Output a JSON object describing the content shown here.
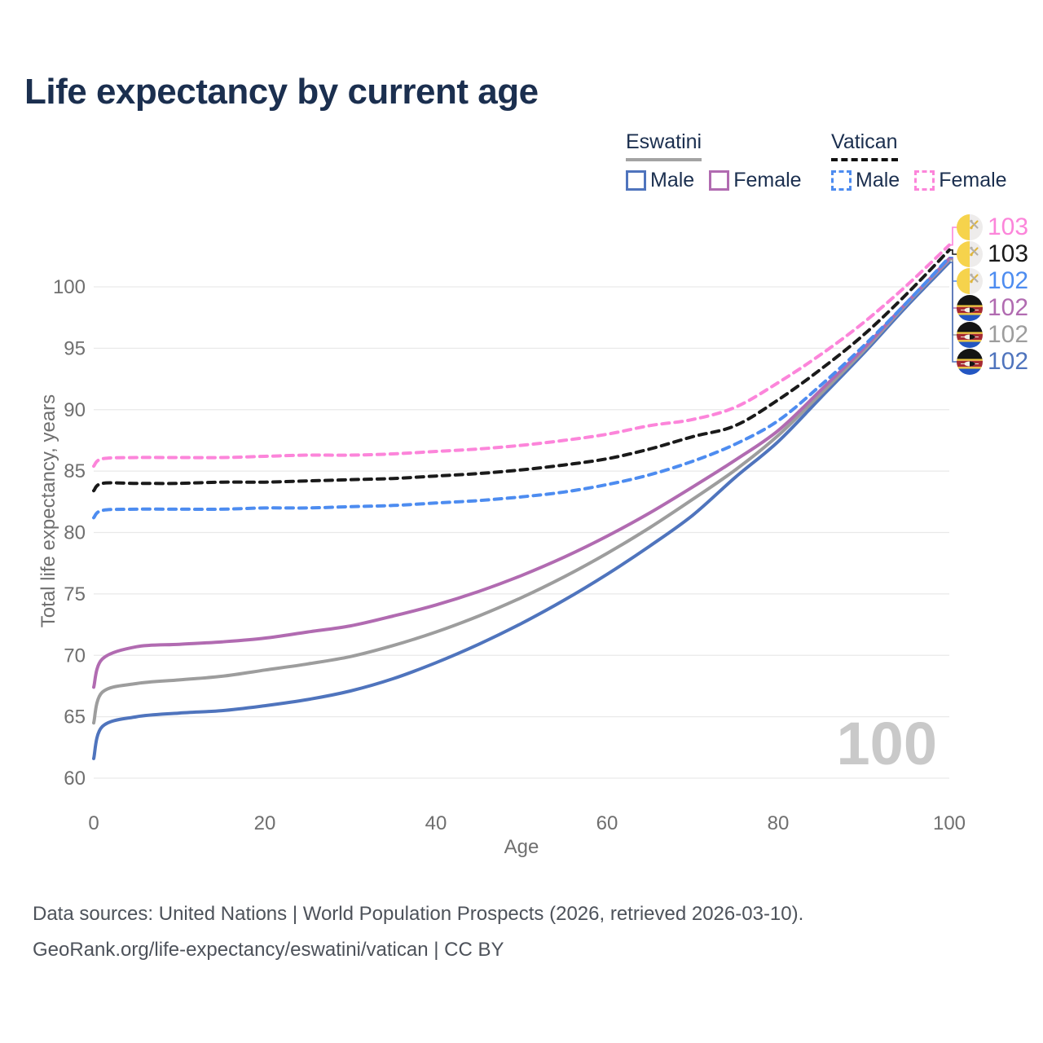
{
  "title": "Life expectancy by current age",
  "legend": {
    "groups": [
      {
        "country": "Eswatini",
        "items": [
          {
            "label": "Male"
          },
          {
            "label": "Female"
          }
        ]
      },
      {
        "country": "Vatican",
        "items": [
          {
            "label": "Male"
          },
          {
            "label": "Female"
          }
        ]
      }
    ]
  },
  "watermark": "100",
  "footer": {
    "line1": "Data sources: United Nations | World Population Prospects (2026, retrieved 2026-03-10).",
    "line2": "GeoRank.org/life-expectancy/eswatini/vatican | CC BY"
  },
  "end_labels": [
    {
      "value": "103",
      "flag": "vatican",
      "series": "vatican_female"
    },
    {
      "value": "103",
      "flag": "vatican",
      "series": "vatican_total"
    },
    {
      "value": "102",
      "flag": "vatican",
      "series": "vatican_male"
    },
    {
      "value": "102",
      "flag": "eswatini",
      "series": "eswatini_female"
    },
    {
      "value": "102",
      "flag": "eswatini",
      "series": "eswatini_total"
    },
    {
      "value": "102",
      "flag": "eswatini",
      "series": "eswatini_male"
    }
  ],
  "chart_data": {
    "type": "line",
    "title": "Life expectancy by current age",
    "xlabel": "Age",
    "ylabel": "Total life expectancy, years",
    "x_ticks": [
      0,
      20,
      40,
      60,
      80,
      100
    ],
    "y_ticks": [
      60,
      65,
      70,
      75,
      80,
      85,
      90,
      95,
      100
    ],
    "xlim": [
      0,
      100
    ],
    "ylim": [
      60,
      103.5
    ],
    "grid": "horizontal",
    "legend_position": "top-right",
    "x": [
      0,
      1,
      5,
      10,
      15,
      20,
      25,
      30,
      35,
      40,
      45,
      50,
      55,
      60,
      65,
      70,
      75,
      80,
      85,
      90,
      95,
      100
    ],
    "series": [
      {
        "id": "eswatini_male",
        "name": "Eswatini Male",
        "style": "solid",
        "color": "#4f74bd",
        "values": [
          61.6,
          64.2,
          65.0,
          65.3,
          65.5,
          65.9,
          66.4,
          67.1,
          68.1,
          69.4,
          70.9,
          72.6,
          74.5,
          76.6,
          78.9,
          81.4,
          84.5,
          87.4,
          91.0,
          94.6,
          98.4,
          102.0
        ]
      },
      {
        "id": "eswatini_total",
        "name": "Eswatini Total",
        "style": "solid",
        "color": "#9d9d9d",
        "values": [
          64.5,
          67.0,
          67.7,
          68.0,
          68.3,
          68.8,
          69.3,
          69.9,
          70.8,
          71.9,
          73.2,
          74.7,
          76.4,
          78.3,
          80.4,
          82.7,
          85.1,
          87.9,
          91.3,
          94.8,
          98.6,
          102.2
        ]
      },
      {
        "id": "eswatini_female",
        "name": "Eswatini Female",
        "style": "solid",
        "color": "#b16bb1",
        "values": [
          67.4,
          69.7,
          70.7,
          70.9,
          71.1,
          71.4,
          71.9,
          72.4,
          73.2,
          74.1,
          75.2,
          76.5,
          78.0,
          79.7,
          81.6,
          83.7,
          85.9,
          88.3,
          91.6,
          95.0,
          98.7,
          102.3
        ]
      },
      {
        "id": "vatican_male",
        "name": "Vatican Male",
        "style": "dashed",
        "color": "#4d8cf0",
        "values": [
          81.2,
          81.8,
          81.9,
          81.9,
          81.9,
          82.0,
          82.0,
          82.1,
          82.2,
          82.4,
          82.6,
          82.9,
          83.3,
          83.9,
          84.7,
          85.8,
          87.2,
          89.1,
          92.0,
          95.2,
          98.7,
          102.4
        ]
      },
      {
        "id": "vatican_total",
        "name": "Vatican Total",
        "style": "dashed",
        "color": "#1a1a1a",
        "values": [
          83.4,
          84.0,
          84.0,
          84.0,
          84.1,
          84.1,
          84.2,
          84.3,
          84.4,
          84.6,
          84.8,
          85.1,
          85.5,
          86.0,
          86.8,
          87.8,
          88.7,
          90.8,
          93.3,
          96.1,
          99.4,
          103.0
        ]
      },
      {
        "id": "vatican_female",
        "name": "Vatican Female",
        "style": "dashed",
        "color": "#fc85da",
        "values": [
          85.4,
          86.0,
          86.1,
          86.1,
          86.1,
          86.2,
          86.3,
          86.3,
          86.4,
          86.6,
          86.8,
          87.1,
          87.5,
          88.0,
          88.7,
          89.2,
          90.2,
          92.2,
          94.5,
          97.1,
          100.1,
          103.4
        ]
      }
    ]
  }
}
